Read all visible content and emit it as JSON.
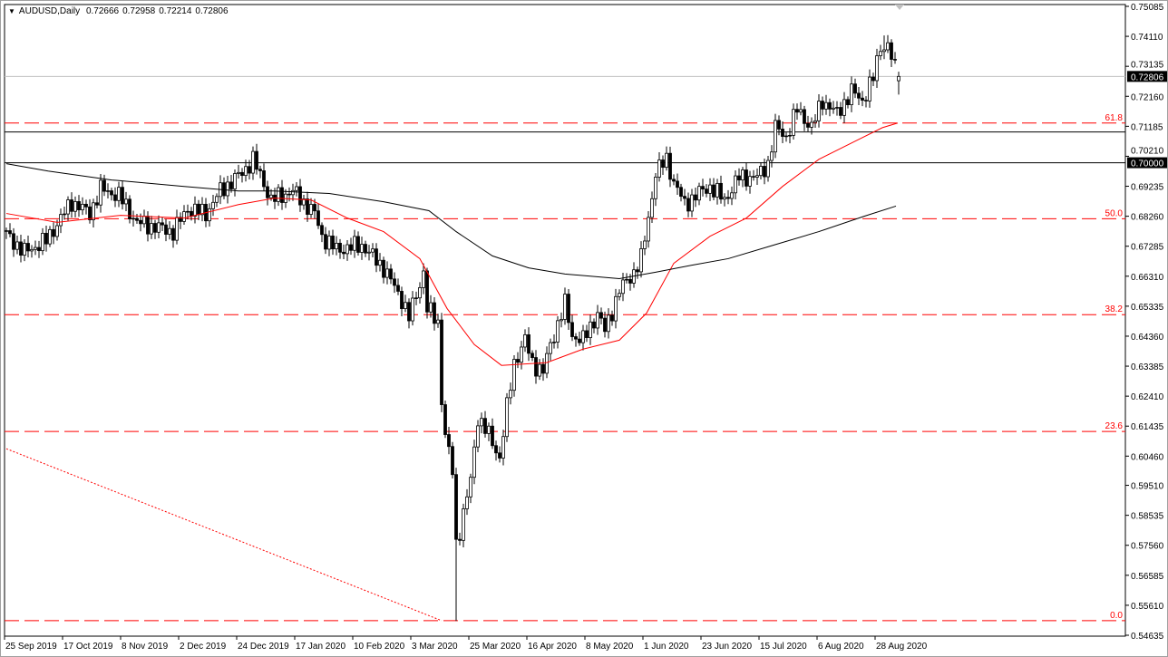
{
  "header": {
    "symbol_timeframe": "AUDUSD,Daily",
    "open": "0.72666",
    "high": "0.72958",
    "low": "0.72214",
    "close": "0.72806",
    "menu_icon": "triangle-down-icon"
  },
  "colors": {
    "background": "#ffffff",
    "bull_body": "#ffffff",
    "bear_body": "#000000",
    "candle_outline": "#000000",
    "ma_fast": "#ff0000",
    "ma_slow": "#000000",
    "fibonacci": "#ff0000",
    "bid_line": "#c0c0c0",
    "horizontal_lines": "#000000"
  },
  "chart_data": {
    "type": "candlestick",
    "title": "AUDUSD,Daily",
    "grid": false,
    "ylim": [
      0.54635,
      0.75085
    ],
    "y_tick_labels": [
      "0.75085",
      "0.74110",
      "0.73135",
      "0.72160",
      "0.71185",
      "0.70210",
      "0.69235",
      "0.68260",
      "0.67285",
      "0.66310",
      "0.65335",
      "0.64360",
      "0.63385",
      "0.62410",
      "0.61435",
      "0.60460",
      "0.59510",
      "0.58535",
      "0.57560",
      "0.56585",
      "0.55610",
      "0.54635"
    ],
    "x_tick_labels": [
      "25 Sep 2019",
      "17 Oct 2019",
      "8 Nov 2019",
      "2 Dec 2019",
      "24 Dec 2019",
      "17 Jan 2020",
      "10 Feb 2020",
      "3 Mar 2020",
      "25 Mar 2020",
      "16 Apr 2020",
      "8 May 2020",
      "1 Jun 2020",
      "23 Jun 2020",
      "15 Jul 2020",
      "6 Aug 2020",
      "28 Aug 2020"
    ],
    "x_tick_every_bars": 16,
    "bar_count": 247,
    "close_samples": [
      [
        0,
        0.6767
      ],
      [
        5,
        0.6709
      ],
      [
        11,
        0.6747
      ],
      [
        18,
        0.6873
      ],
      [
        23,
        0.6835
      ],
      [
        26,
        0.6914
      ],
      [
        31,
        0.6894
      ],
      [
        36,
        0.6806
      ],
      [
        46,
        0.6776
      ],
      [
        50,
        0.685
      ],
      [
        55,
        0.6835
      ],
      [
        59,
        0.6908
      ],
      [
        65,
        0.6967
      ],
      [
        68,
        0.7011
      ],
      [
        73,
        0.6879
      ],
      [
        79,
        0.6908
      ],
      [
        85,
        0.6835
      ],
      [
        87,
        0.6761
      ],
      [
        91,
        0.6717
      ],
      [
        98,
        0.6732
      ],
      [
        104,
        0.6658
      ],
      [
        109,
        0.6556
      ],
      [
        111,
        0.6497
      ],
      [
        115,
        0.6644
      ],
      [
        116,
        0.6526
      ],
      [
        119,
        0.6482
      ],
      [
        120,
        0.6232
      ],
      [
        121,
        0.6114
      ],
      [
        123,
        0.5997
      ],
      [
        124,
        0.5761
      ],
      [
        125,
        0.5805
      ],
      [
        128,
        0.5967
      ],
      [
        130,
        0.6173
      ],
      [
        133,
        0.6114
      ],
      [
        136,
        0.6041
      ],
      [
        138,
        0.6203
      ],
      [
        140,
        0.635
      ],
      [
        143,
        0.6423
      ],
      [
        145,
        0.635
      ],
      [
        148,
        0.632
      ],
      [
        150,
        0.6409
      ],
      [
        154,
        0.6541
      ],
      [
        156,
        0.6438
      ],
      [
        159,
        0.6423
      ],
      [
        163,
        0.6511
      ],
      [
        165,
        0.6453
      ],
      [
        169,
        0.6585
      ],
      [
        173,
        0.6644
      ],
      [
        175,
        0.6688
      ],
      [
        177,
        0.682
      ],
      [
        179,
        0.6967
      ],
      [
        182,
        0.7011
      ],
      [
        184,
        0.6938
      ],
      [
        187,
        0.6864
      ],
      [
        190,
        0.6894
      ],
      [
        194,
        0.6923
      ],
      [
        198,
        0.6879
      ],
      [
        202,
        0.6953
      ],
      [
        207,
        0.6953
      ],
      [
        210,
        0.6997
      ],
      [
        212,
        0.7114
      ],
      [
        215,
        0.7085
      ],
      [
        218,
        0.7173
      ],
      [
        222,
        0.7114
      ],
      [
        225,
        0.7203
      ],
      [
        229,
        0.7159
      ],
      [
        233,
        0.7232
      ],
      [
        236,
        0.7203
      ],
      [
        239,
        0.7276
      ],
      [
        241,
        0.7379
      ],
      [
        243,
        0.7379
      ],
      [
        245,
        0.7306
      ],
      [
        246,
        0.72806
      ]
    ],
    "extremes": {
      "low": 0.551,
      "low_bar": 124,
      "high": 0.7414,
      "high_bar": 242
    },
    "last_bar_ohlc": [
      0.72666,
      0.72958,
      0.72214,
      0.72806
    ],
    "series": [
      {
        "kind": "moving-average-fast",
        "color": "#ff0000",
        "points": [
          [
            0,
            0.6835
          ],
          [
            14,
            0.6806
          ],
          [
            31.5,
            0.6829
          ],
          [
            49,
            0.682
          ],
          [
            64,
            0.6864
          ],
          [
            74,
            0.6885
          ],
          [
            84,
            0.6879
          ],
          [
            94,
            0.682
          ],
          [
            104,
            0.6776
          ],
          [
            114,
            0.6688
          ],
          [
            121.5,
            0.6526
          ],
          [
            129,
            0.6409
          ],
          [
            136.5,
            0.6341
          ],
          [
            149,
            0.635
          ],
          [
            159,
            0.6394
          ],
          [
            169,
            0.6423
          ],
          [
            176.5,
            0.6511
          ],
          [
            184,
            0.6673
          ],
          [
            194,
            0.6761
          ],
          [
            204,
            0.682
          ],
          [
            214,
            0.6923
          ],
          [
            224,
            0.7011
          ],
          [
            234,
            0.707
          ],
          [
            241.5,
            0.7114
          ],
          [
            245.75,
            0.7129
          ]
        ]
      },
      {
        "kind": "moving-average-slow",
        "color": "#000000",
        "points": [
          [
            0,
            0.6997
          ],
          [
            11.5,
            0.6973
          ],
          [
            29,
            0.6944
          ],
          [
            49,
            0.6923
          ],
          [
            64,
            0.6908
          ],
          [
            74,
            0.6908
          ],
          [
            89,
            0.69
          ],
          [
            104,
            0.6873
          ],
          [
            116.5,
            0.6844
          ],
          [
            124,
            0.6776
          ],
          [
            134,
            0.6697
          ],
          [
            144,
            0.6658
          ],
          [
            154,
            0.6638
          ],
          [
            169,
            0.6623
          ],
          [
            179,
            0.6644
          ],
          [
            189,
            0.6667
          ],
          [
            199,
            0.6688
          ],
          [
            211.5,
            0.6732
          ],
          [
            224,
            0.6776
          ],
          [
            236.5,
            0.6826
          ],
          [
            245.25,
            0.6859
          ]
        ]
      }
    ],
    "fibonacci_levels": [
      {
        "label": "61.8",
        "price": 0.7129
      },
      {
        "label": "50.0",
        "price": 0.6818
      },
      {
        "label": "38.2",
        "price": 0.6506
      },
      {
        "label": "23.6",
        "price": 0.6126
      },
      {
        "label": "0.0",
        "price": 0.5511
      }
    ],
    "horizontal_lines": [
      {
        "price": 0.71,
        "label": ""
      },
      {
        "price": 0.7,
        "label": "0.70000"
      }
    ],
    "bid_line": {
      "price": 0.72806,
      "label": "0.72806"
    },
    "trendline": {
      "start": [
        0,
        0.607
      ],
      "end": [
        120,
        0.5511
      ],
      "style": "dotted",
      "color": "#ff0000"
    }
  }
}
